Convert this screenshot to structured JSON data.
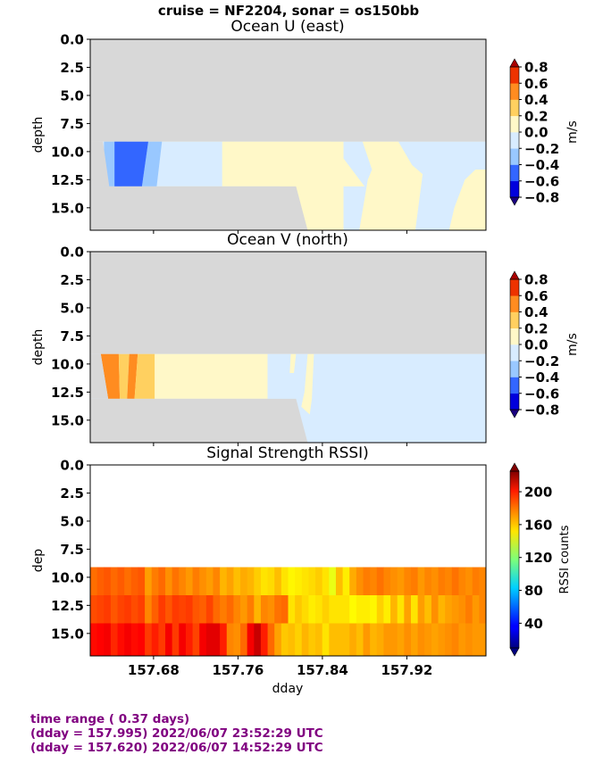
{
  "suptitle": "cruise = NF2204,  sonar = os150bb",
  "footer": {
    "line1": "time range ( 0.37 days)",
    "line2": "(dday = 157.995) 2022/06/07 23:52:29 UTC",
    "line3": "(dday = 157.620) 2022/06/07 14:52:29 UTC"
  },
  "colors": {
    "nodata": "#d8d8d8",
    "footer": "#800080"
  },
  "chart_data": [
    {
      "type": "heatmap",
      "title": "Ocean U (east)",
      "ylabel": "depth",
      "xlabel": "",
      "xlim": [
        157.62,
        157.995
      ],
      "ylim": [
        17,
        0
      ],
      "yticks": [
        "0.0",
        "2.5",
        "5.0",
        "7.5",
        "10.0",
        "12.5",
        "15.0"
      ],
      "xticks": [
        "157.68",
        "157.76",
        "157.84",
        "157.92"
      ],
      "colorbar": {
        "label": "m/s",
        "ticks": [
          "0.8",
          "0.6",
          "0.4",
          "0.2",
          "0.0",
          "−0.2",
          "−0.4",
          "−0.6",
          "−0.8"
        ],
        "colors": [
          "#0000dd",
          "#3366ff",
          "#99c8ff",
          "#d8ecff",
          "#fff8c8",
          "#ffd060",
          "#ff8c20",
          "#ee3300"
        ]
      },
      "data_depth_top": 9.1,
      "fields": [
        {
          "value": 0.05,
          "pts": [
            [
              157.62,
              9.1
            ],
            [
              157.995,
              9.1
            ],
            [
              157.995,
              17
            ],
            [
              157.62,
              17
            ]
          ]
        },
        {
          "value": -0.1,
          "pts": [
            [
              157.628,
              9.1
            ],
            [
              157.745,
              9.1
            ],
            [
              157.745,
              13.1
            ],
            [
              157.62,
              13.1
            ]
          ]
        },
        {
          "value": -0.1,
          "pts": [
            [
              157.848,
              9.1
            ],
            [
              157.878,
              9.1
            ],
            [
              157.887,
              11.6
            ],
            [
              157.883,
              12.5
            ],
            [
              157.875,
              17
            ],
            [
              157.74,
              17
            ],
            [
              157.745,
              13.1
            ],
            [
              157.88,
              13.1
            ]
          ]
        },
        {
          "value": -0.1,
          "pts": [
            [
              157.912,
              9.1
            ],
            [
              157.995,
              9.1
            ],
            [
              157.995,
              11.6
            ],
            [
              157.985,
              11.6
            ],
            [
              157.975,
              12.5
            ],
            [
              157.965,
              15.0
            ],
            [
              157.96,
              17
            ],
            [
              157.928,
              17
            ],
            [
              157.935,
              12.0
            ],
            [
              157.925,
              11.2
            ]
          ]
        },
        {
          "value": 0.05,
          "pts": [
            [
              157.8,
              9.1
            ],
            [
              157.86,
              9.1
            ],
            [
              157.86,
              17
            ],
            [
              157.8,
              17
            ]
          ]
        },
        {
          "value": -0.3,
          "pts": [
            [
              157.633,
              9.1
            ],
            [
              157.655,
              9.1
            ],
            [
              157.65,
              13.1
            ],
            [
              157.633,
              13.1
            ]
          ]
        },
        {
          "value": -0.3,
          "pts": [
            [
              157.675,
              9.1
            ],
            [
              157.688,
              9.1
            ],
            [
              157.683,
              13.1
            ],
            [
              157.669,
              13.1
            ]
          ]
        },
        {
          "value": -0.5,
          "pts": [
            [
              157.643,
              9.1
            ],
            [
              157.675,
              9.1
            ],
            [
              157.669,
              13.1
            ],
            [
              157.643,
              13.1
            ]
          ]
        },
        {
          "value": 0.05,
          "pts": [
            [
              157.752,
              9.1
            ],
            [
              157.756,
              9.1
            ],
            [
              157.754,
              10.8
            ],
            [
              157.751,
              10.8
            ]
          ]
        }
      ],
      "nodata": [
        {
          "pts": [
            [
              157.62,
              0
            ],
            [
              157.995,
              0
            ],
            [
              157.995,
              9.1
            ],
            [
              157.62,
              9.1
            ]
          ]
        },
        {
          "pts": [
            [
              157.62,
              9.1
            ],
            [
              157.628,
              9.1
            ],
            [
              157.632,
              13.1
            ],
            [
              157.62,
              13.1
            ]
          ]
        },
        {
          "pts": [
            [
              157.62,
              13.1
            ],
            [
              157.815,
              13.1
            ],
            [
              157.826,
              17
            ],
            [
              157.62,
              17
            ]
          ]
        },
        {
          "pts": [
            [
              157.62,
              9.1
            ],
            [
              157.632,
              9.1
            ],
            [
              157.638,
              13.1
            ],
            [
              157.62,
              13.1
            ]
          ]
        }
      ]
    },
    {
      "type": "heatmap",
      "title": "Ocean V (north)",
      "ylabel": "depth",
      "xlabel": "",
      "xlim": [
        157.62,
        157.995
      ],
      "ylim": [
        17,
        0
      ],
      "yticks": [
        "0.0",
        "2.5",
        "5.0",
        "7.5",
        "10.0",
        "12.5",
        "15.0"
      ],
      "xticks": [
        "157.68",
        "157.76",
        "157.84",
        "157.92"
      ],
      "colorbar": {
        "label": "m/s",
        "ticks": [
          "0.8",
          "0.6",
          "0.4",
          "0.2",
          "0.0",
          "−0.2",
          "−0.4",
          "−0.6",
          "−0.8"
        ],
        "colors": [
          "#0000dd",
          "#3366ff",
          "#99c8ff",
          "#d8ecff",
          "#fff8c8",
          "#ffd060",
          "#ff8c20",
          "#ee3300"
        ]
      },
      "data_depth_top": 9.1,
      "fields": [
        {
          "value": -0.1,
          "pts": [
            [
              157.62,
              9.1
            ],
            [
              157.995,
              9.1
            ],
            [
              157.995,
              17
            ],
            [
              157.62,
              17
            ]
          ]
        },
        {
          "value": 0.05,
          "pts": [
            [
              157.66,
              9.1
            ],
            [
              157.788,
              9.1
            ],
            [
              157.788,
              13.1
            ],
            [
              157.66,
              13.1
            ]
          ]
        },
        {
          "value": 0.05,
          "pts": [
            [
              157.81,
              9.1
            ],
            [
              157.815,
              9.1
            ],
            [
              157.813,
              10.8
            ],
            [
              157.809,
              10.8
            ]
          ]
        },
        {
          "value": 0.05,
          "pts": [
            [
              157.826,
              9.1
            ],
            [
              157.832,
              9.1
            ],
            [
              157.83,
              13.1
            ],
            [
              157.828,
              14.5
            ],
            [
              157.82,
              13.8
            ],
            [
              157.823,
              12.5
            ]
          ]
        },
        {
          "value": 0.5,
          "pts": [
            [
              157.63,
              9.1
            ],
            [
              157.647,
              9.1
            ],
            [
              157.648,
              13.1
            ],
            [
              157.637,
              13.1
            ]
          ]
        },
        {
          "value": 0.3,
          "pts": [
            [
              157.647,
              9.1
            ],
            [
              157.657,
              9.1
            ],
            [
              157.655,
              13.1
            ],
            [
              157.648,
              13.1
            ]
          ]
        },
        {
          "value": 0.5,
          "pts": [
            [
              157.657,
              9.1
            ],
            [
              157.665,
              9.1
            ],
            [
              157.662,
              13.1
            ],
            [
              157.655,
              13.1
            ]
          ]
        },
        {
          "value": 0.3,
          "pts": [
            [
              157.665,
              9.1
            ],
            [
              157.681,
              9.1
            ],
            [
              157.681,
              13.1
            ],
            [
              157.662,
              13.1
            ]
          ]
        }
      ],
      "nodata": [
        {
          "pts": [
            [
              157.62,
              0
            ],
            [
              157.995,
              0
            ],
            [
              157.995,
              9.1
            ],
            [
              157.62,
              9.1
            ]
          ]
        },
        {
          "pts": [
            [
              157.62,
              9.1
            ],
            [
              157.63,
              9.1
            ],
            [
              157.637,
              13.1
            ],
            [
              157.62,
              13.1
            ]
          ]
        },
        {
          "pts": [
            [
              157.62,
              13.1
            ],
            [
              157.815,
              13.1
            ],
            [
              157.826,
              17
            ],
            [
              157.62,
              17
            ]
          ]
        }
      ]
    },
    {
      "type": "heatmap",
      "title": "Signal Strength RSSI)",
      "ylabel": "dep",
      "xlabel": "dday",
      "xlim": [
        157.62,
        157.995
      ],
      "ylim": [
        17,
        0
      ],
      "yticks": [
        "0.0",
        "2.5",
        "5.0",
        "7.5",
        "10.0",
        "12.5",
        "15.0"
      ],
      "xticks": [
        "157.68",
        "157.76",
        "157.84",
        "157.92"
      ],
      "xtick_values": [
        157.68,
        157.76,
        157.84,
        157.92
      ],
      "colorbar": {
        "label": "RSSI counts",
        "ticks": [
          "200",
          "160",
          "120",
          "80",
          "40"
        ],
        "tick_values": [
          200,
          160,
          120,
          80,
          40
        ],
        "vmin": 10,
        "vmax": 225
      },
      "rows": [
        {
          "top": 9.1,
          "bottom": 11.6,
          "values": [
            175,
            178,
            180,
            176,
            179,
            175,
            178,
            180,
            165,
            172,
            176,
            168,
            174,
            170,
            166,
            172,
            168,
            165,
            170,
            160,
            164,
            158,
            162,
            160,
            155,
            150,
            152,
            158,
            150,
            146,
            148,
            150,
            152,
            155,
            150,
            140,
            158,
            148,
            162,
            168,
            172,
            170,
            174,
            170,
            168,
            166,
            170,
            172,
            166,
            170,
            168,
            172,
            170,
            174,
            170,
            168,
            172,
            170
          ]
        },
        {
          "top": 11.6,
          "bottom": 14.1,
          "values": [
            182,
            184,
            186,
            180,
            184,
            186,
            182,
            185,
            170,
            178,
            186,
            180,
            186,
            184,
            186,
            180,
            178,
            184,
            176,
            172,
            176,
            170,
            166,
            172,
            160,
            170,
            168,
            174,
            176,
            150,
            156,
            152,
            148,
            150,
            154,
            150,
            150,
            150,
            145,
            148,
            148,
            146,
            154,
            148,
            160,
            150,
            164,
            150,
            165,
            158,
            168,
            160,
            164,
            166,
            168,
            172,
            166,
            170
          ]
        },
        {
          "top": 14.1,
          "bottom": 17,
          "values": [
            196,
            198,
            200,
            190,
            196,
            200,
            196,
            198,
            186,
            192,
            186,
            200,
            186,
            200,
            192,
            184,
            200,
            204,
            204,
            192,
            170,
            168,
            176,
            200,
            210,
            192,
            176,
            164,
            156,
            158,
            154,
            160,
            156,
            158,
            150,
            158,
            158,
            158,
            162,
            158,
            166,
            160,
            162,
            166,
            166,
            164,
            168,
            164,
            168,
            166,
            164,
            166,
            168,
            170,
            166,
            168,
            166,
            166
          ]
        }
      ]
    }
  ]
}
